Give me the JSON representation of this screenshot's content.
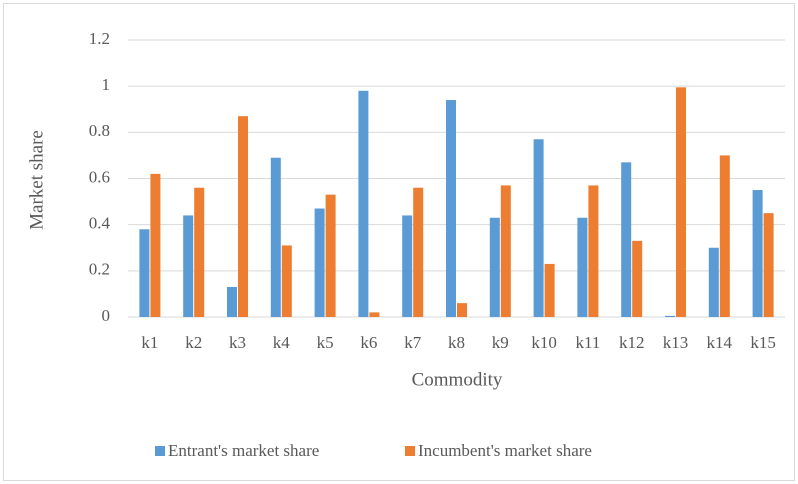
{
  "chart_data": {
    "type": "bar",
    "x_label": "Commodity",
    "y_label": "Market share",
    "categories": [
      "k1",
      "k2",
      "k3",
      "k4",
      "k5",
      "k6",
      "k7",
      "k8",
      "k9",
      "k10",
      "k11",
      "k12",
      "k13",
      "k14",
      "k15"
    ],
    "series": [
      {
        "name": "Entrant's market share",
        "color": "#5b9bd5",
        "values": [
          0.38,
          0.44,
          0.13,
          0.69,
          0.47,
          0.98,
          0.44,
          0.94,
          0.43,
          0.77,
          0.43,
          0.67,
          0.005,
          0.3,
          0.55
        ]
      },
      {
        "name": "Incumbent's market share",
        "color": "#ed7d31",
        "values": [
          0.62,
          0.56,
          0.87,
          0.31,
          0.53,
          0.02,
          0.56,
          0.06,
          0.57,
          0.23,
          0.57,
          0.33,
          0.995,
          0.7,
          0.45
        ]
      }
    ],
    "ylim": [
      0,
      1.2
    ],
    "yticks": [
      0,
      0.2,
      0.4,
      0.6,
      0.8,
      1,
      1.2
    ],
    "grid": true,
    "legend": "bottom"
  }
}
